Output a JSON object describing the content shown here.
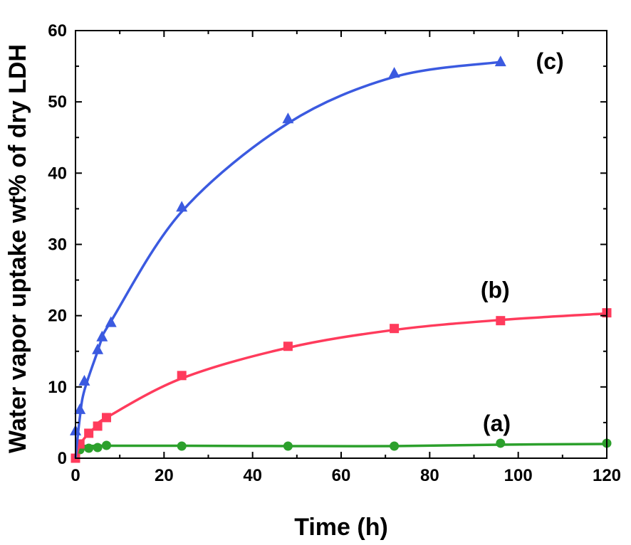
{
  "chart_data": {
    "type": "scatter",
    "xlabel": "Time (h)",
    "ylabel": "Water vapor uptake wt% of dry LDH",
    "xlim": [
      0,
      120
    ],
    "ylim": [
      0,
      60
    ],
    "xticks": [
      0,
      20,
      40,
      60,
      80,
      100,
      120
    ],
    "yticks": [
      0,
      10,
      20,
      30,
      40,
      50,
      60
    ],
    "grid": false,
    "series": [
      {
        "label": "(a)",
        "color": "#2ca02c",
        "marker": "circle",
        "x": [
          0,
          1,
          3,
          5,
          7,
          24,
          48,
          72,
          96,
          120
        ],
        "y": [
          0,
          1.2,
          1.4,
          1.5,
          1.8,
          1.7,
          1.7,
          1.7,
          2.1,
          2.1
        ],
        "curve_y": [
          0,
          1.55,
          1.7,
          1.75,
          1.75,
          1.75,
          1.7,
          1.7,
          1.9,
          2.0
        ]
      },
      {
        "label": "(b)",
        "color": "#ff3b5c",
        "marker": "square",
        "x": [
          0,
          1,
          3,
          5,
          7,
          24,
          48,
          72,
          96,
          120
        ],
        "y": [
          0,
          2.0,
          3.5,
          4.5,
          5.7,
          11.6,
          15.7,
          18.2,
          19.3,
          20.4
        ],
        "curve_y": [
          0,
          1.9,
          3.5,
          4.6,
          5.7,
          11.2,
          15.5,
          18.0,
          19.4,
          20.3
        ]
      },
      {
        "label": "(c)",
        "color": "#3b5ae0",
        "marker": "triangle",
        "x": [
          0,
          1,
          2,
          5,
          6,
          8,
          24,
          48,
          72,
          96
        ],
        "y": [
          3.8,
          6.8,
          10.8,
          15.2,
          17.0,
          19.0,
          35.2,
          47.6,
          54.0,
          55.6
        ],
        "curve_y": [
          0,
          5.8,
          9.5,
          15.0,
          16.8,
          19.2,
          34.6,
          47.0,
          53.5,
          55.6
        ]
      }
    ]
  }
}
